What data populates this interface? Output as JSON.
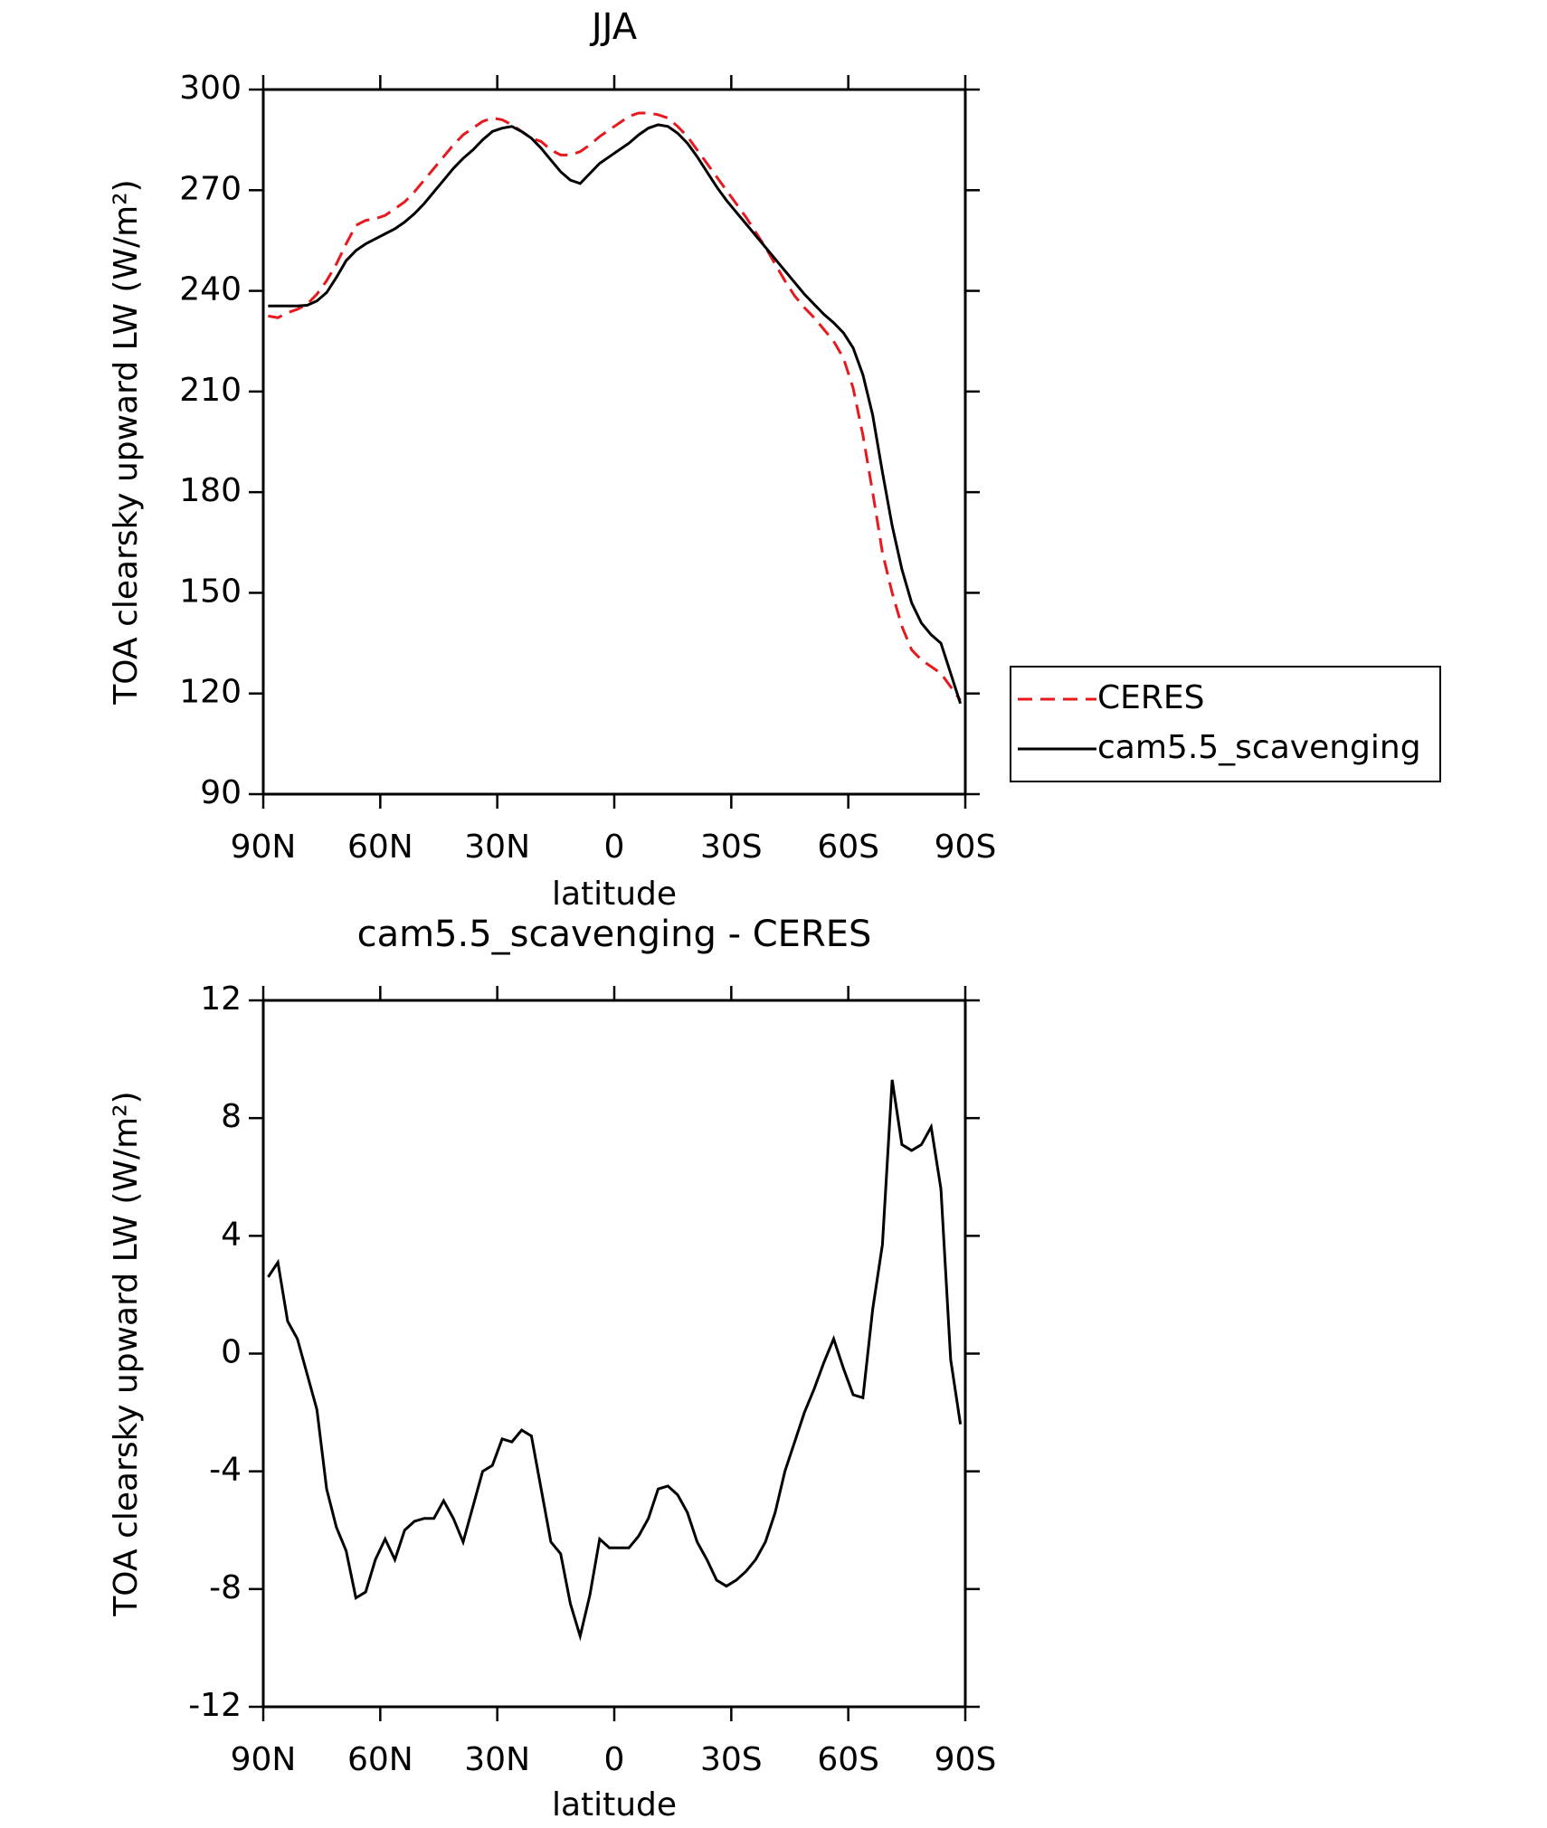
{
  "chart_data": [
    {
      "type": "line",
      "title": "JJA",
      "xlabel": "latitude",
      "ylabel": "TOA clearsky upward LW (W/m²)",
      "x": [
        88.75,
        86.25,
        83.75,
        81.25,
        78.75,
        76.25,
        73.75,
        71.25,
        68.75,
        66.25,
        63.75,
        61.25,
        58.75,
        56.25,
        53.75,
        51.25,
        48.75,
        46.25,
        43.75,
        41.25,
        38.75,
        36.25,
        33.75,
        31.25,
        28.75,
        26.25,
        23.75,
        21.25,
        18.75,
        16.25,
        13.75,
        11.25,
        8.75,
        6.25,
        3.75,
        1.25,
        -1.25,
        -3.75,
        -6.25,
        -8.75,
        -11.25,
        -13.75,
        -16.25,
        -18.75,
        -21.25,
        -23.75,
        -26.25,
        -28.75,
        -31.25,
        -33.75,
        -36.25,
        -38.75,
        -41.25,
        -43.75,
        -46.25,
        -48.75,
        -51.25,
        -53.75,
        -56.25,
        -58.75,
        -61.25,
        -63.75,
        -66.25,
        -68.75,
        -71.25,
        -73.75,
        -76.25,
        -78.75,
        -81.25,
        -83.75,
        -86.25,
        -88.75
      ],
      "series": [
        {
          "name": "CERES",
          "color": "#e8191e",
          "line_style": "dashed",
          "values": [
            232.5,
            232,
            233.5,
            234.5,
            236,
            239,
            243,
            248,
            254,
            259.5,
            261,
            261.5,
            262.5,
            264.5,
            266.5,
            269.5,
            273,
            276.5,
            280,
            283.5,
            286.5,
            288.5,
            290.5,
            291.5,
            291,
            289.5,
            287.5,
            285.5,
            284.5,
            282,
            280.5,
            280.5,
            281.5,
            283.5,
            286,
            288,
            290,
            292,
            293,
            293,
            292.5,
            291.5,
            289,
            286,
            282,
            278,
            274,
            270,
            266,
            262,
            257.5,
            253,
            248,
            243,
            238.5,
            235,
            232,
            228.5,
            225,
            220,
            211,
            197,
            180,
            162,
            150,
            140,
            133,
            130,
            128,
            126,
            122,
            118
          ]
        },
        {
          "name": "cam5.5_scavenging",
          "color": "#000000",
          "line_style": "solid",
          "values": [
            235.5,
            235.5,
            235.5,
            235.5,
            235.7,
            237,
            239.5,
            244,
            249,
            252,
            254,
            255.5,
            257,
            258.5,
            260.5,
            263,
            266,
            269.5,
            273,
            276.5,
            279.5,
            282,
            285,
            287.5,
            288.5,
            289,
            287.5,
            285.5,
            282.5,
            279,
            275.5,
            273,
            272,
            275,
            278,
            280,
            282,
            284,
            286.5,
            288.5,
            289.5,
            289,
            287,
            284,
            280,
            275.5,
            271,
            267,
            263.5,
            260,
            256.5,
            253,
            249.5,
            246,
            242.5,
            239,
            236,
            233,
            230.5,
            227.5,
            223,
            215,
            203,
            186,
            170,
            157,
            147,
            141,
            137.5,
            135,
            126,
            117
          ]
        }
      ],
      "xlim": [
        90,
        -90
      ],
      "xticks": [
        {
          "value": 90,
          "label": "90N"
        },
        {
          "value": 60,
          "label": "60N"
        },
        {
          "value": 30,
          "label": "30N"
        },
        0,
        {
          "value": -30,
          "label": "30S"
        },
        {
          "value": -60,
          "label": "60S"
        },
        {
          "value": -90,
          "label": "90S"
        }
      ],
      "ylim": [
        90,
        300
      ],
      "yticks": [
        90,
        120,
        150,
        180,
        210,
        240,
        270,
        300
      ],
      "legend": "right"
    },
    {
      "type": "line",
      "title": "cam5.5_scavenging - CERES",
      "xlabel": "latitude",
      "ylabel": "TOA clearsky upward LW (W/m²)",
      "x": [
        88.75,
        86.25,
        83.75,
        81.25,
        78.75,
        76.25,
        73.75,
        71.25,
        68.75,
        66.25,
        63.75,
        61.25,
        58.75,
        56.25,
        53.75,
        51.25,
        48.75,
        46.25,
        43.75,
        41.25,
        38.75,
        36.25,
        33.75,
        31.25,
        28.75,
        26.25,
        23.75,
        21.25,
        18.75,
        16.25,
        13.75,
        11.25,
        8.75,
        6.25,
        3.75,
        1.25,
        -1.25,
        -3.75,
        -6.25,
        -8.75,
        -11.25,
        -13.75,
        -16.25,
        -18.75,
        -21.25,
        -23.75,
        -26.25,
        -28.75,
        -31.25,
        -33.75,
        -36.25,
        -38.75,
        -41.25,
        -43.75,
        -46.25,
        -48.75,
        -51.25,
        -53.75,
        -56.25,
        -58.75,
        -61.25,
        -63.75,
        -66.25,
        -68.75,
        -71.25,
        -73.75,
        -76.25,
        -78.75,
        -81.25,
        -83.75,
        -86.25,
        -88.75
      ],
      "series": [
        {
          "color": "#000000",
          "line_style": "solid",
          "values": [
            2.6,
            3.1,
            1.1,
            0.5,
            -0.7,
            -1.9,
            -4.6,
            -5.9,
            -6.7,
            -8.3,
            -8.1,
            -7.0,
            -6.3,
            -7.0,
            -6.0,
            -5.7,
            -5.6,
            -5.6,
            -5.0,
            -5.6,
            -6.4,
            -5.2,
            -4.0,
            -3.8,
            -2.9,
            -3.0,
            -2.6,
            -2.8,
            -4.6,
            -6.4,
            -6.8,
            -8.5,
            -9.6,
            -8.2,
            -6.3,
            -6.6,
            -6.6,
            -6.6,
            -6.2,
            -5.6,
            -4.6,
            -4.5,
            -4.8,
            -5.4,
            -6.4,
            -7.0,
            -7.7,
            -7.9,
            -7.7,
            -7.4,
            -7.0,
            -6.4,
            -5.4,
            -4.0,
            -3.0,
            -2.0,
            -1.2,
            -0.3,
            0.5,
            -0.5,
            -1.4,
            -1.5,
            1.5,
            3.7,
            9.3,
            7.1,
            6.9,
            7.1,
            7.7,
            5.6,
            -0.2,
            -2.4
          ]
        }
      ],
      "xlim": [
        90,
        -90
      ],
      "xticks": [
        {
          "value": 90,
          "label": "90N"
        },
        {
          "value": 60,
          "label": "60N"
        },
        {
          "value": 30,
          "label": "30N"
        },
        0,
        {
          "value": -30,
          "label": "30S"
        },
        {
          "value": -60,
          "label": "60S"
        },
        {
          "value": -90,
          "label": "90S"
        }
      ],
      "ylim": [
        -12,
        12
      ],
      "yticks": [
        -12,
        -8,
        -4,
        0,
        4,
        8,
        12
      ]
    }
  ]
}
